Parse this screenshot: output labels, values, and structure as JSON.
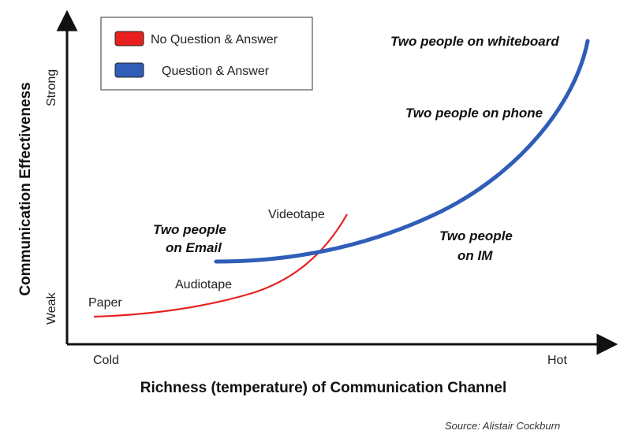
{
  "chart_data": {
    "type": "line",
    "title": "",
    "xlabel": "Richness (temperature) of Communication Channel",
    "ylabel": "Communication Effectiveness",
    "x_ticks": [
      "Cold",
      "Hot"
    ],
    "y_ticks": [
      "Weak",
      "Strong"
    ],
    "xlim": [
      0,
      100
    ],
    "ylim": [
      0,
      100
    ],
    "legend_position": "top-left",
    "grid": false,
    "series": [
      {
        "name": "No Question & Answer",
        "color": "#e8211f",
        "points": [
          {
            "x": 0,
            "y": 8
          },
          {
            "x": 30,
            "y": 14
          },
          {
            "x": 40,
            "y": 22
          },
          {
            "x": 45,
            "y": 30
          },
          {
            "x": 48,
            "y": 40
          },
          {
            "x": 53,
            "y": 52
          }
        ],
        "annotations": [
          {
            "text": "Paper",
            "x": 0,
            "y": 8
          },
          {
            "text": "Audiotape",
            "x": 21,
            "y": 20
          },
          {
            "text": "Videotape",
            "x": 45,
            "y": 52
          }
        ]
      },
      {
        "name": "Question & Answer",
        "color": "#2f5db8",
        "points": [
          {
            "x": 25,
            "y": 32
          },
          {
            "x": 55,
            "y": 36
          },
          {
            "x": 75,
            "y": 48
          },
          {
            "x": 88,
            "y": 68
          },
          {
            "x": 96,
            "y": 86
          },
          {
            "x": 100,
            "y": 100
          }
        ],
        "annotations": [
          {
            "text": "Two people",
            "x": 20,
            "y": 40,
            "line2": "on Email"
          },
          {
            "text": "Two people",
            "x": 72,
            "y": 40,
            "line2": "on IM"
          },
          {
            "text": "Two people on phone",
            "x": 82,
            "y": 82
          },
          {
            "text": "Two people on whiteboard",
            "x": 87,
            "y": 98
          }
        ]
      }
    ],
    "source": "Source: Alistair Cockburn"
  }
}
